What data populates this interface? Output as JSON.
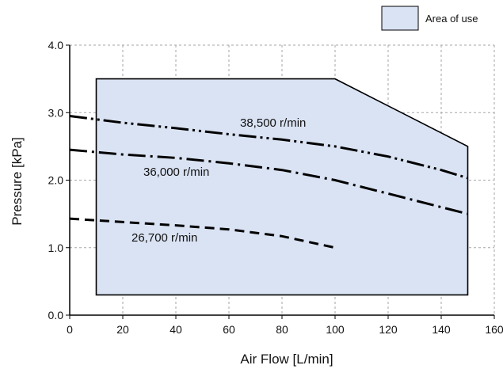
{
  "chart_data": {
    "type": "line",
    "title": "",
    "xlabel": "Air Flow [L/min]",
    "ylabel": "Pressure [kPa]",
    "xlim": [
      0,
      160
    ],
    "ylim": [
      0,
      4.0
    ],
    "x_ticks": [
      0,
      20,
      40,
      60,
      80,
      100,
      120,
      140,
      160
    ],
    "x_tick_labels": [
      "0",
      "20",
      "40",
      "60",
      "80",
      "100",
      "120",
      "140",
      "160"
    ],
    "y_ticks": [
      0,
      1.0,
      2.0,
      3.0,
      4.0
    ],
    "y_tick_labels": [
      "0.0",
      "1.0",
      "2.0",
      "3.0",
      "4.0"
    ],
    "grid": true,
    "legend": {
      "position": "top-right",
      "entries": [
        "Area of use"
      ]
    },
    "area": {
      "name": "Area of use",
      "color": "#dae3f3",
      "points": [
        [
          10,
          0.3
        ],
        [
          10,
          3.5
        ],
        [
          100,
          3.5
        ],
        [
          150,
          2.5
        ],
        [
          150,
          0.3
        ]
      ]
    },
    "series": [
      {
        "name": "38,500 r/min",
        "style": "dash-dot-dot",
        "points": [
          [
            0,
            2.95
          ],
          [
            20,
            2.85
          ],
          [
            40,
            2.77
          ],
          [
            60,
            2.68
          ],
          [
            80,
            2.6
          ],
          [
            100,
            2.5
          ],
          [
            120,
            2.35
          ],
          [
            140,
            2.15
          ],
          [
            150,
            2.03
          ]
        ]
      },
      {
        "name": "36,000 r/min",
        "style": "dash-dot",
        "points": [
          [
            0,
            2.45
          ],
          [
            20,
            2.38
          ],
          [
            40,
            2.33
          ],
          [
            60,
            2.25
          ],
          [
            80,
            2.15
          ],
          [
            100,
            2.0
          ],
          [
            120,
            1.8
          ],
          [
            140,
            1.6
          ],
          [
            150,
            1.5
          ]
        ]
      },
      {
        "name": "26,700 r/min",
        "style": "dashed",
        "points": [
          [
            0,
            1.43
          ],
          [
            20,
            1.38
          ],
          [
            40,
            1.33
          ],
          [
            60,
            1.27
          ],
          [
            80,
            1.17
          ],
          [
            100,
            1.0
          ]
        ]
      }
    ],
    "colors": {
      "line": "#000000",
      "grid": "#a6a6a6",
      "area_fill": "#dae3f3",
      "area_stroke": "#000000"
    }
  }
}
